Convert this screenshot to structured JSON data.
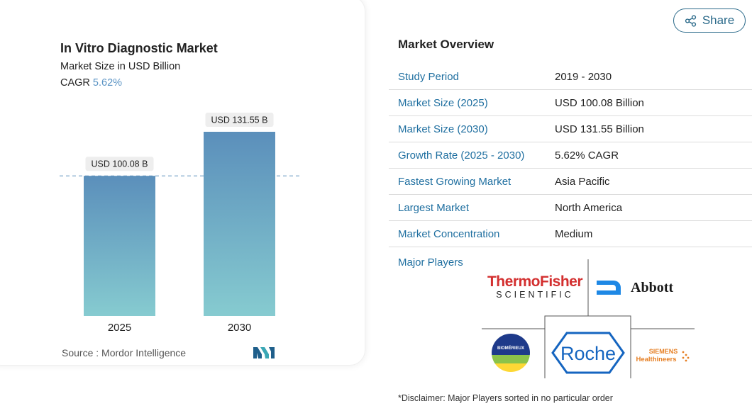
{
  "chart_data": {
    "type": "bar",
    "title": "In Vitro Diagnostic Market",
    "subtitle": "Market Size in USD Billion",
    "cagr_label": "CAGR",
    "cagr_value": "5.62%",
    "categories": [
      "2025",
      "2030"
    ],
    "values": [
      100.08,
      131.55
    ],
    "value_labels": [
      "USD 100.08 B",
      "USD 131.55 B"
    ],
    "ylim": [
      0,
      131.55
    ],
    "source": "Source :  Mordor Intelligence",
    "colors": {
      "bar_top": "#5b8fbb",
      "bar_bottom": "#86cbd0",
      "ref_line": "#5b8fbb"
    }
  },
  "share": {
    "label": "Share",
    "icon": "share-icon"
  },
  "overview": {
    "title": "Market Overview",
    "rows": [
      {
        "key": "Study Period",
        "value": "2019 - 2030"
      },
      {
        "key": "Market Size (2025)",
        "value": "USD 100.08 Billion"
      },
      {
        "key": "Market Size (2030)",
        "value": "USD 131.55 Billion"
      },
      {
        "key": "Growth Rate (2025 - 2030)",
        "value": "5.62% CAGR"
      },
      {
        "key": "Fastest Growing Market",
        "value": "Asia Pacific"
      },
      {
        "key": "Largest Market",
        "value": "North America"
      },
      {
        "key": "Market Concentration",
        "value": "Medium"
      }
    ]
  },
  "major_players": {
    "label": "Major Players",
    "logos": {
      "thermo_top": "ThermoFisher",
      "thermo_bottom": "SCIENTIFIC",
      "abbott": "Abbott",
      "biomerieux": "BIOMÉRIEUX",
      "roche": "Roche",
      "siemens_top": "SIEMENS",
      "siemens_bottom": "Healthineers"
    }
  },
  "disclaimer": "*Disclaimer: Major Players sorted in no particular order"
}
